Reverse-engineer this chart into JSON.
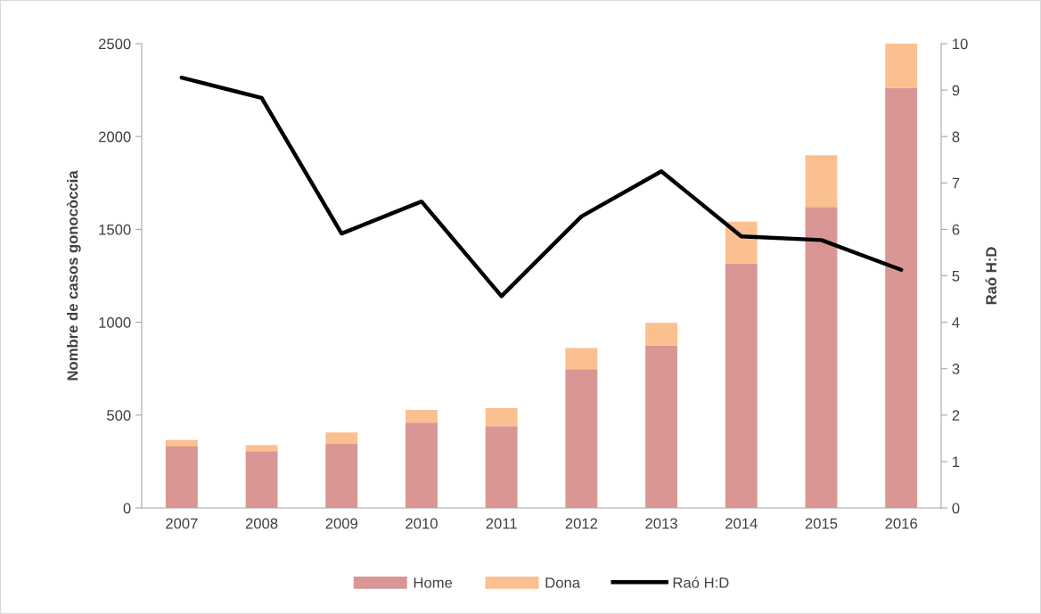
{
  "chart_data": {
    "type": "bar",
    "stacked": true,
    "categories": [
      "2007",
      "2008",
      "2009",
      "2010",
      "2011",
      "2012",
      "2013",
      "2014",
      "2015",
      "2016"
    ],
    "series": [
      {
        "name": "Home",
        "color": "#d99694",
        "values": [
          331,
          306,
          348,
          459,
          440,
          747,
          876,
          1316,
          1621,
          2263
        ]
      },
      {
        "name": "Dona",
        "color": "#fac090",
        "values": [
          35,
          32,
          59,
          69,
          98,
          114,
          121,
          225,
          278,
          240
        ]
      },
      {
        "name": "Raó H:D",
        "type": "line",
        "axis": "y2",
        "color": "#000000",
        "values": [
          9.27,
          8.83,
          5.91,
          6.6,
          4.56,
          6.28,
          7.25,
          5.85,
          5.77,
          5.13
        ]
      }
    ],
    "ylabel": "Nombre de casos gonocòccia",
    "y2label": "Raó H:D",
    "ylim": [
      0,
      2500
    ],
    "yticks": [
      0,
      500,
      1000,
      1500,
      2000,
      2500
    ],
    "y2lim": [
      0,
      10
    ],
    "y2ticks": [
      0,
      1,
      2,
      3,
      4,
      5,
      6,
      7,
      8,
      9,
      10
    ],
    "legend": "bottom",
    "grid": false,
    "marker": "none",
    "line_style": "solid"
  }
}
